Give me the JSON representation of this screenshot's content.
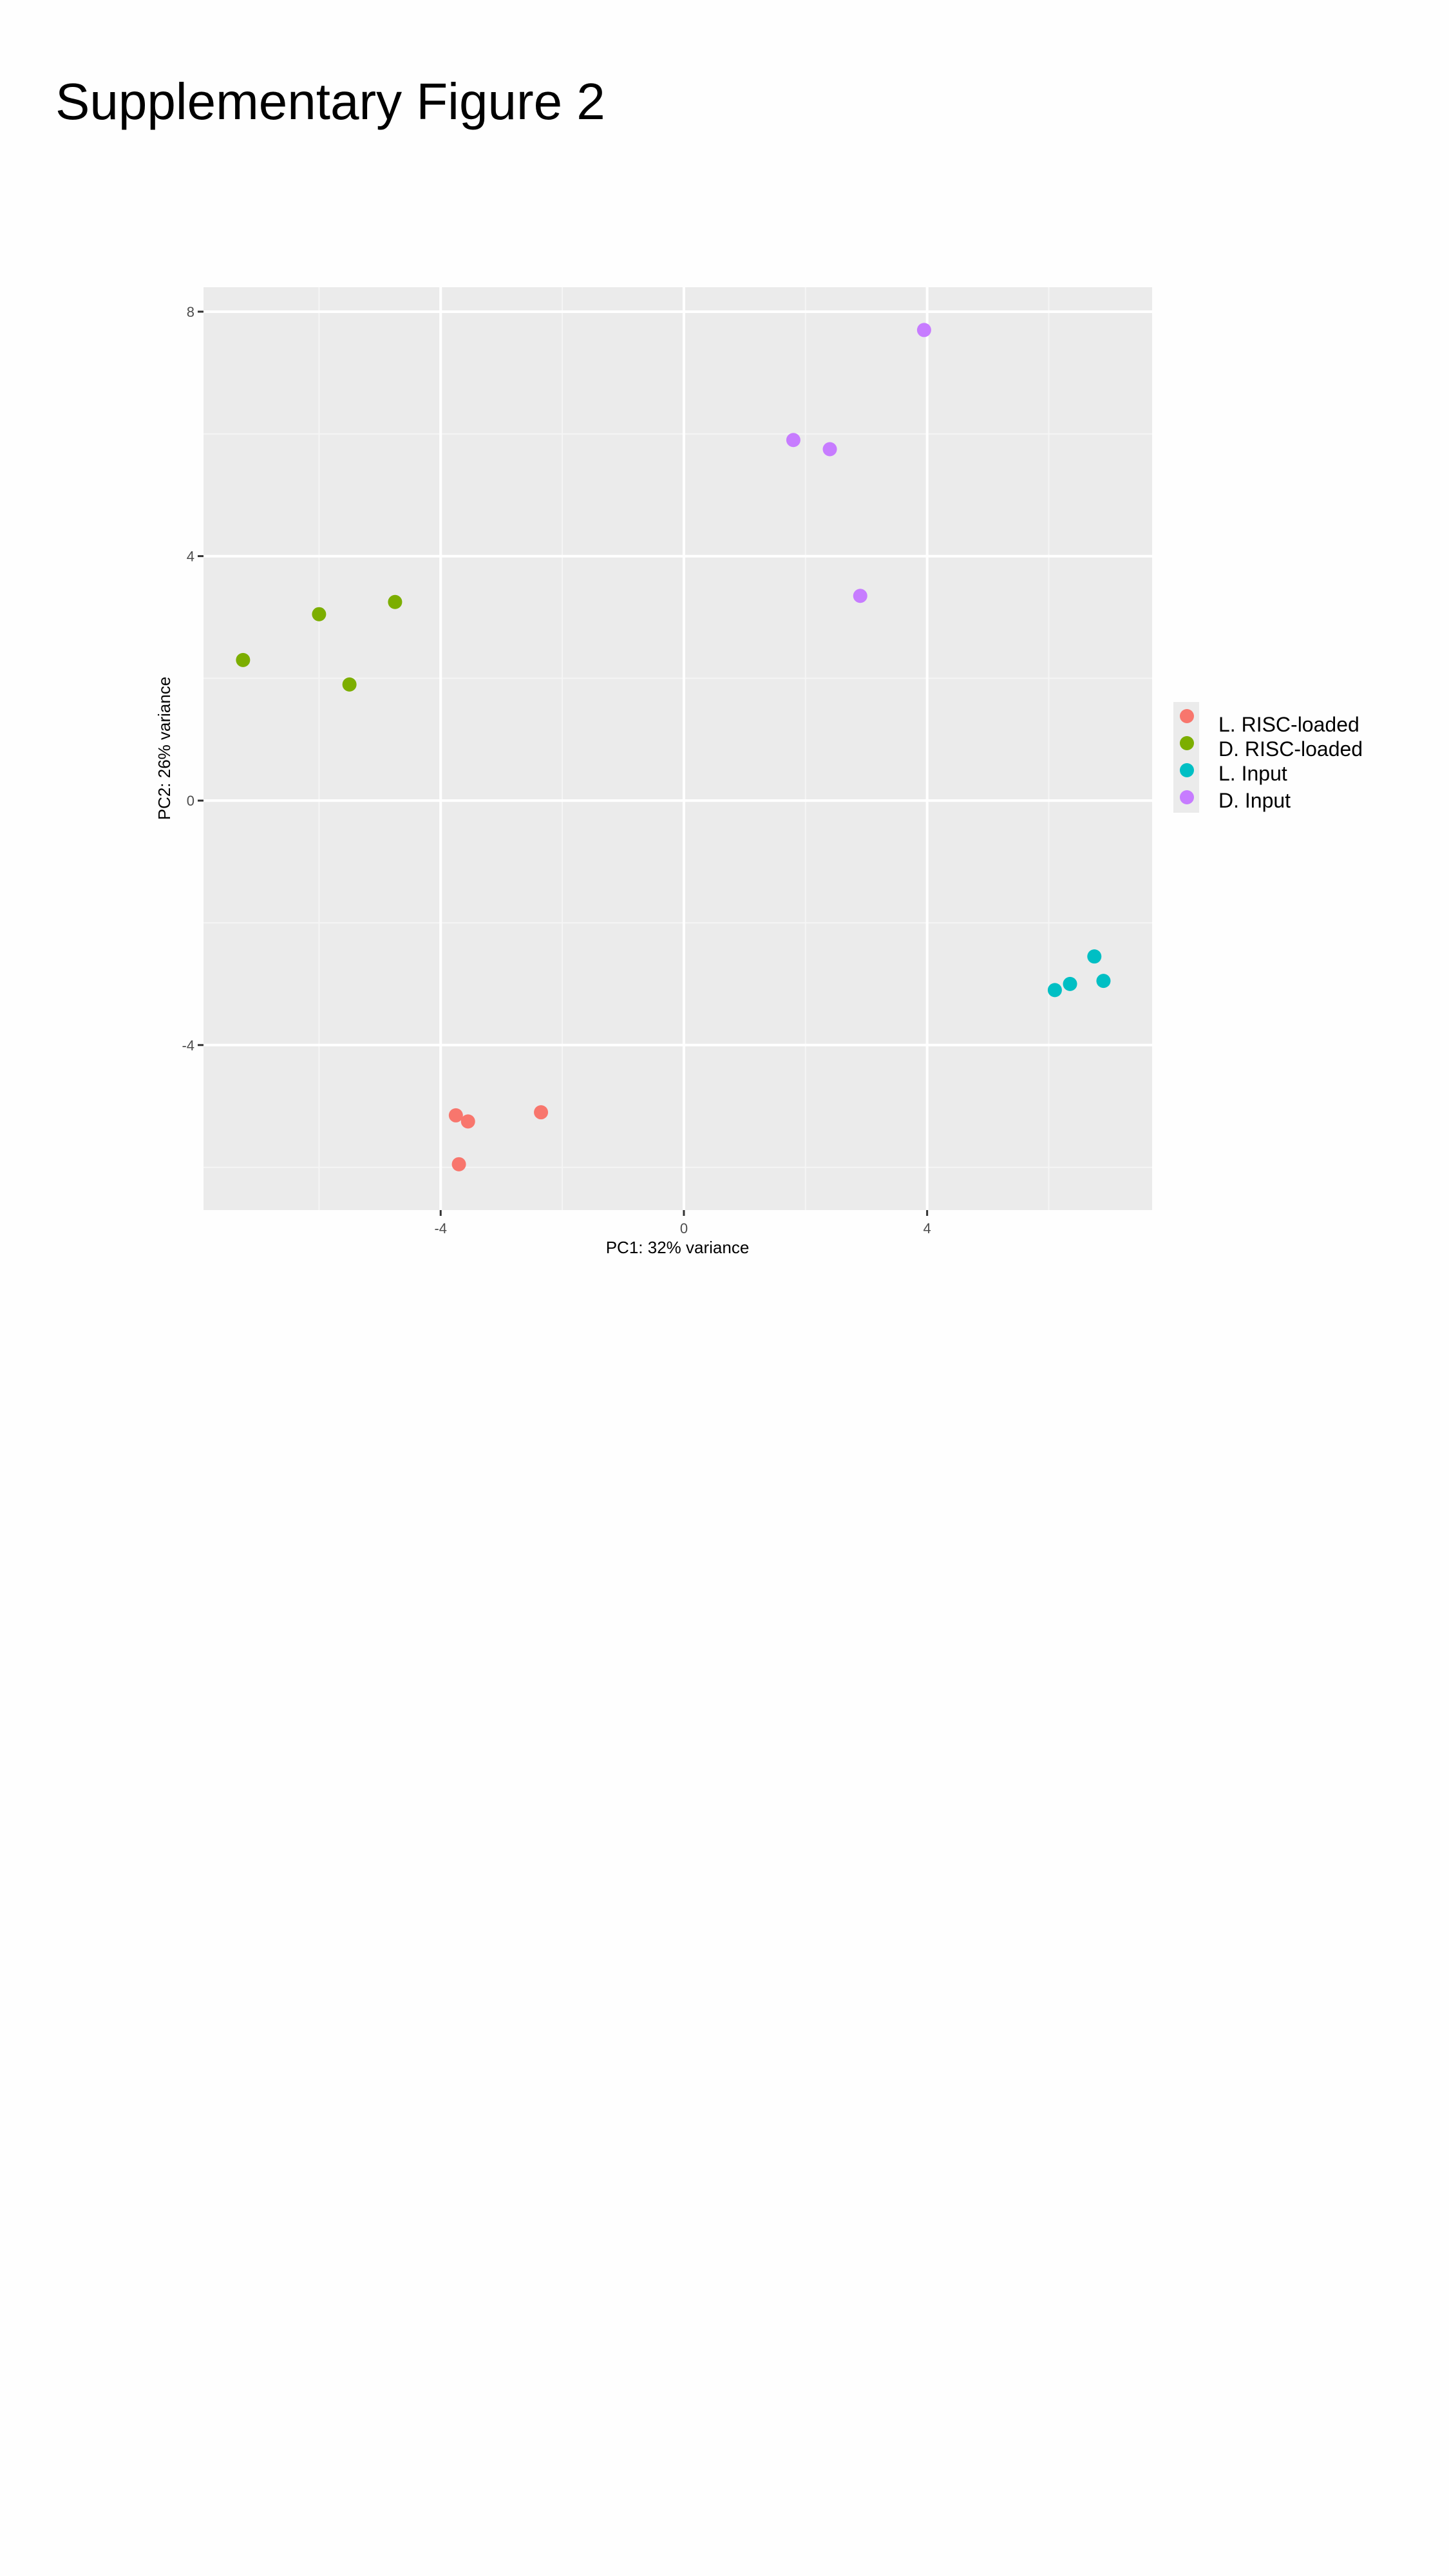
{
  "page": {
    "title": "Supplementary Figure 2"
  },
  "chart_data": {
    "type": "scatter",
    "title": "",
    "xlabel": "PC1: 32% variance",
    "ylabel": "PC2: 26% variance",
    "xlim": [
      -7.9,
      7.7
    ],
    "ylim": [
      -6.7,
      8.4
    ],
    "xticks": [
      -4,
      0,
      4
    ],
    "yticks": [
      8,
      4,
      0,
      -4
    ],
    "grid": true,
    "legend_position": "right",
    "series": [
      {
        "name": "L. RISC-loaded",
        "color": "#F8766D",
        "points": [
          [
            -3.75,
            -5.15
          ],
          [
            -3.55,
            -5.25
          ],
          [
            -2.35,
            -5.1
          ],
          [
            -3.7,
            -5.95
          ]
        ]
      },
      {
        "name": "D. RISC-loaded",
        "color": "#7CAE00",
        "points": [
          [
            -7.25,
            2.3
          ],
          [
            -6.0,
            3.05
          ],
          [
            -4.75,
            3.25
          ],
          [
            -5.5,
            1.9
          ]
        ]
      },
      {
        "name": "L. Input",
        "color": "#00BFC4",
        "points": [
          [
            6.75,
            -2.55
          ],
          [
            6.35,
            -3.0
          ],
          [
            6.1,
            -3.1
          ],
          [
            6.9,
            -2.95
          ]
        ]
      },
      {
        "name": "D. Input",
        "color": "#C77CFF",
        "points": [
          [
            3.95,
            7.7
          ],
          [
            1.8,
            5.9
          ],
          [
            2.4,
            5.75
          ],
          [
            2.9,
            3.35
          ]
        ]
      }
    ]
  }
}
